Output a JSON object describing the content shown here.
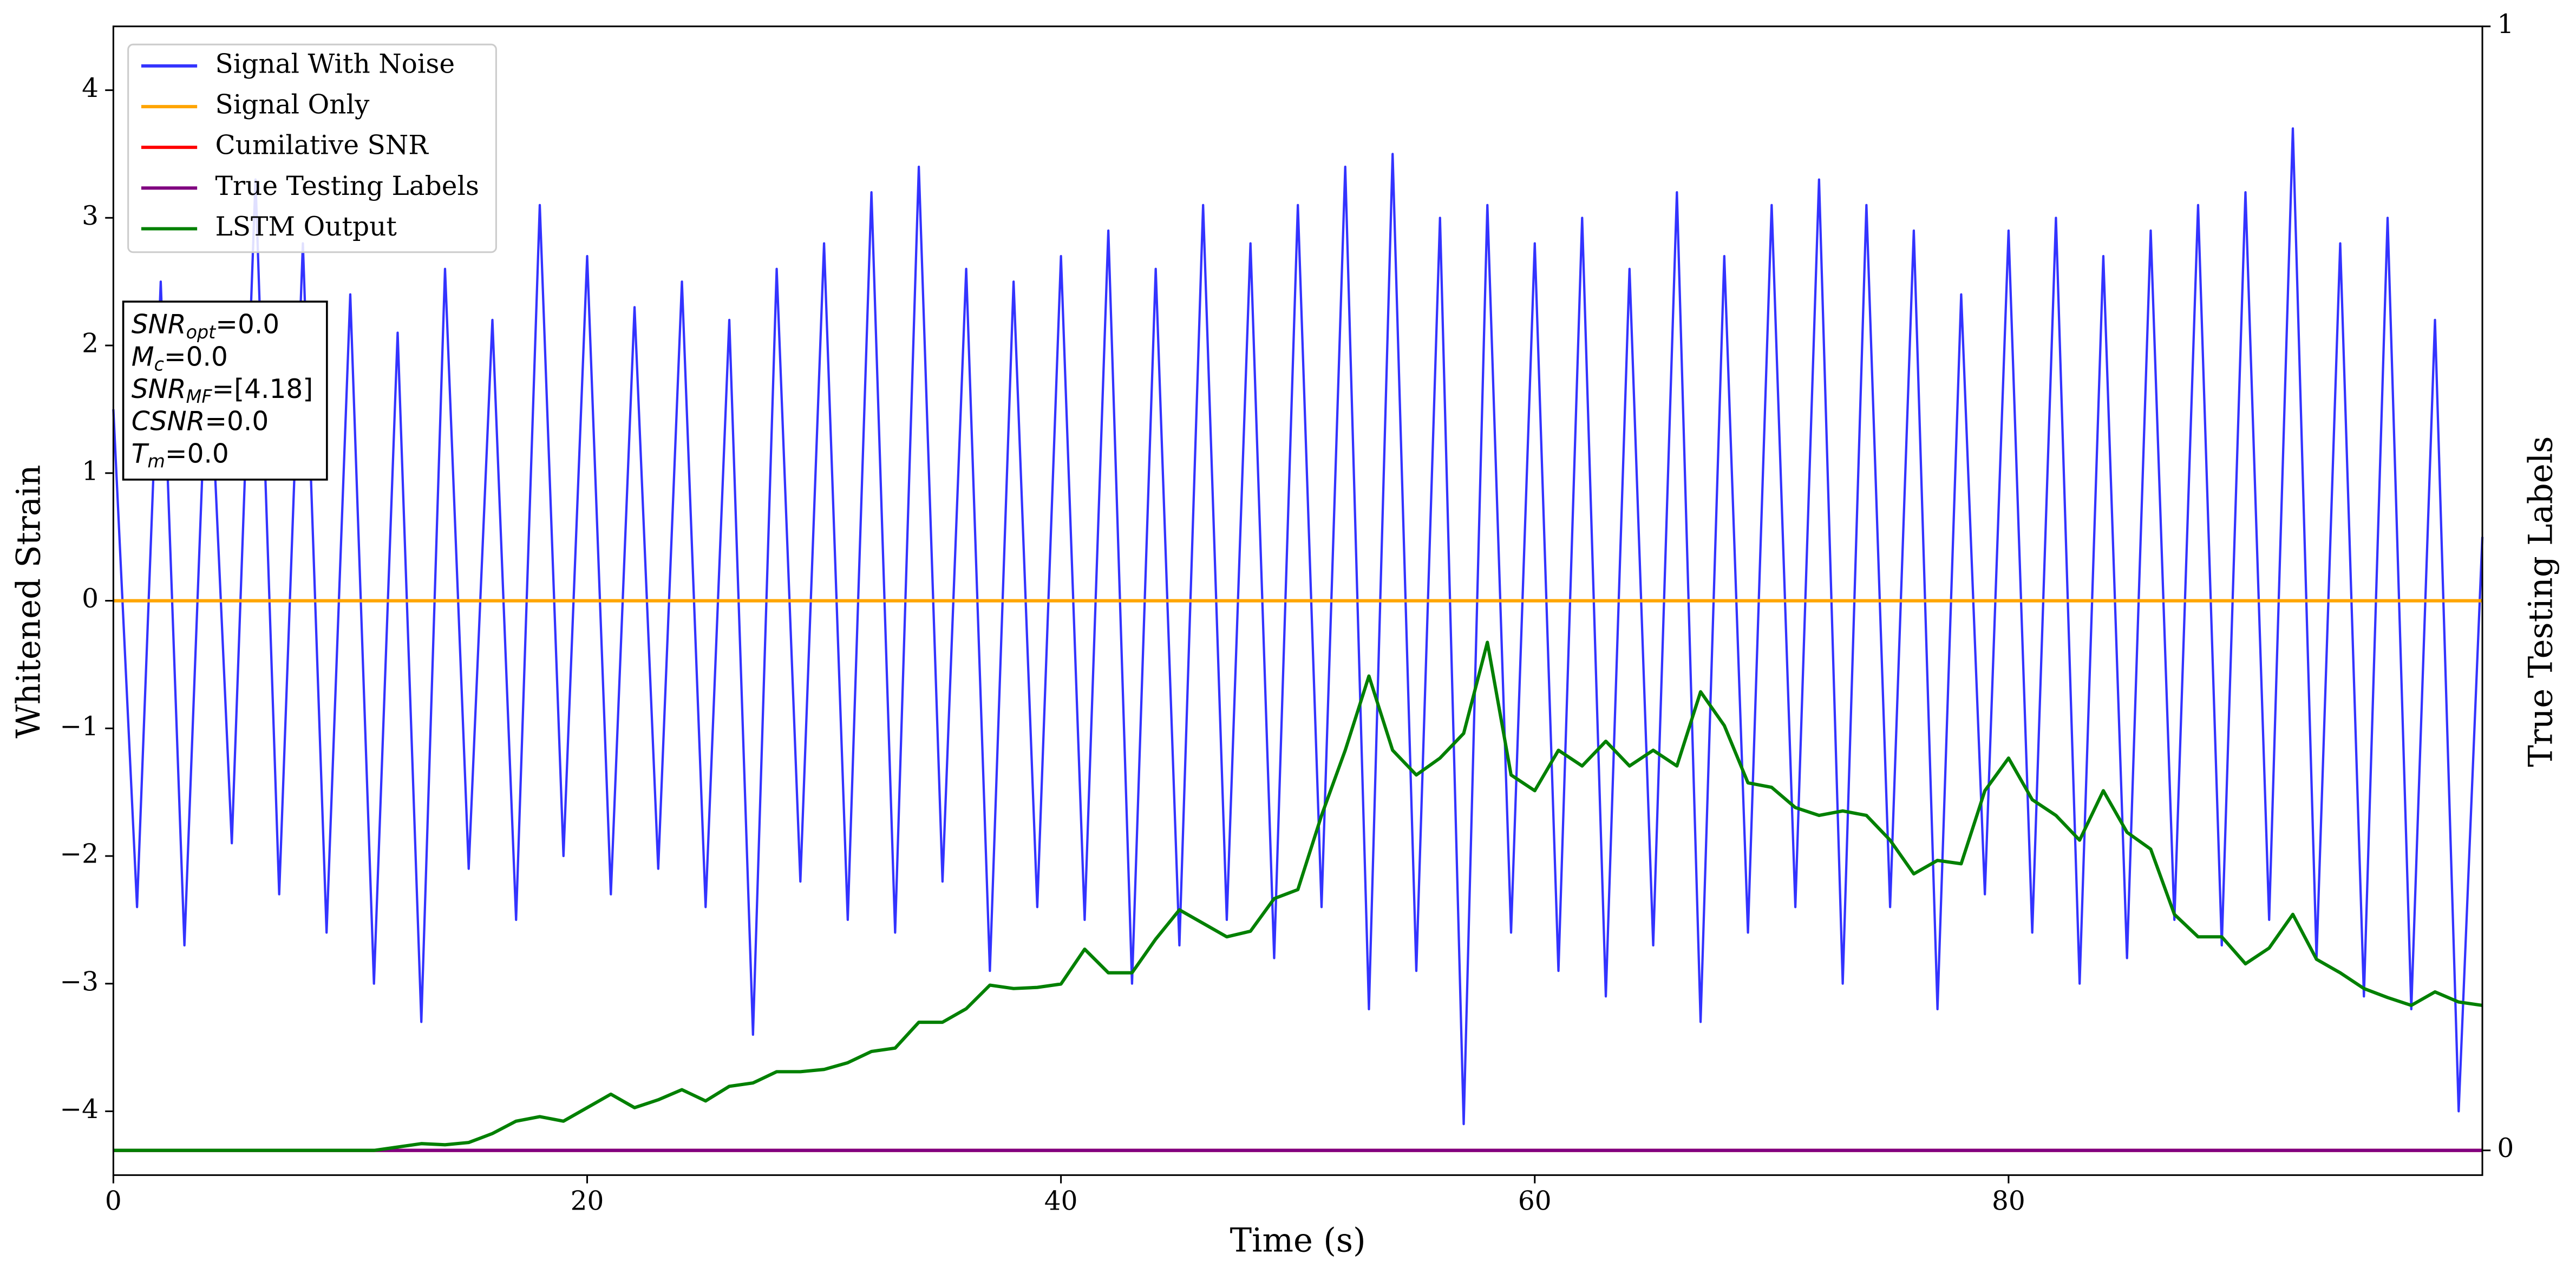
{
  "chart_data": {
    "type": "line",
    "xlabel": "Time (s)",
    "ylabel": "Whitened Strain",
    "y2label": "True Testing Labels",
    "xlim": [
      0,
      100
    ],
    "xticks": [
      0,
      20,
      40,
      60,
      80
    ],
    "ylim": [
      -4.5,
      4.5
    ],
    "yticks": [
      {
        "value": -4,
        "label": "−4"
      },
      {
        "value": -3,
        "label": "−3"
      },
      {
        "value": -2,
        "label": "−2"
      },
      {
        "value": -1,
        "label": "−1"
      },
      0,
      1,
      2,
      3,
      4
    ],
    "y2lim": [
      -0.022,
      1
    ],
    "y2ticks": [
      0,
      1
    ],
    "legend": "upper left",
    "annotations": [
      {
        "symbol": "SNR",
        "subscript": "opt",
        "text": "=0.0"
      },
      {
        "symbol": "M",
        "subscript": "c",
        "text": "=0.0"
      },
      {
        "symbol": "SNR",
        "subscript": "MF",
        "text": "=[4.18]"
      },
      {
        "symbol": "CSNR",
        "text": "=0.0"
      },
      {
        "symbol": "T",
        "subscript": "m",
        "text": "=0.0"
      }
    ],
    "x": [
      0,
      1,
      2,
      3,
      4,
      5,
      6,
      7,
      8,
      9,
      10,
      11,
      12,
      13,
      14,
      15,
      16,
      17,
      18,
      19,
      20,
      21,
      22,
      23,
      24,
      25,
      26,
      27,
      28,
      29,
      30,
      31,
      32,
      33,
      34,
      35,
      36,
      37,
      38,
      39,
      40,
      41,
      42,
      43,
      44,
      45,
      46,
      47,
      48,
      49,
      50,
      51,
      52,
      53,
      54,
      55,
      56,
      57,
      58,
      59,
      60,
      61,
      62,
      63,
      64,
      65,
      66,
      67,
      68,
      69,
      70,
      71,
      72,
      73,
      74,
      75,
      76,
      77,
      78,
      79,
      80,
      81,
      82,
      83,
      84,
      85,
      86,
      87,
      88,
      89,
      90,
      91,
      92,
      93,
      94,
      95,
      96,
      97,
      98,
      99,
      100
    ],
    "series": [
      {
        "name": "Signal With Noise",
        "color": "#3333ff",
        "values": [
          1.5,
          -2.4,
          2.5,
          -2.7,
          2.2,
          -1.9,
          3.3,
          -2.3,
          2.8,
          -2.6,
          2.4,
          -3.0,
          2.1,
          -3.3,
          2.6,
          -2.1,
          2.2,
          -2.5,
          3.1,
          -2.0,
          2.7,
          -2.3,
          2.3,
          -2.1,
          2.5,
          -2.4,
          2.2,
          -3.4,
          2.6,
          -2.2,
          2.8,
          -2.5,
          3.2,
          -2.6,
          3.4,
          -2.2,
          2.6,
          -2.9,
          2.5,
          -2.4,
          2.7,
          -2.5,
          2.9,
          -3.0,
          2.6,
          -2.7,
          3.1,
          -2.5,
          2.8,
          -2.8,
          3.1,
          -2.4,
          3.4,
          -3.2,
          3.5,
          -2.9,
          3.0,
          -4.1,
          3.1,
          -2.6,
          2.8,
          -2.9,
          3.0,
          -3.1,
          2.6,
          -2.7,
          3.2,
          -3.3,
          2.7,
          -2.6,
          3.1,
          -2.4,
          3.3,
          -3.0,
          3.1,
          -2.4,
          2.9,
          -3.2,
          2.4,
          -2.3,
          2.9,
          -2.6,
          3.0,
          -3.0,
          2.7,
          -2.8,
          2.9,
          -2.5,
          3.1,
          -2.7,
          3.2,
          -2.5,
          3.7,
          -2.8,
          2.8,
          -3.1,
          3.0,
          -3.2,
          2.2,
          -4.0,
          0.5
        ]
      },
      {
        "name": "Signal Only",
        "color": "#ffa500",
        "values": [
          0,
          0,
          0,
          0,
          0,
          0,
          0,
          0,
          0,
          0,
          0,
          0,
          0,
          0,
          0,
          0,
          0,
          0,
          0,
          0,
          0,
          0,
          0,
          0,
          0,
          0,
          0,
          0,
          0,
          0,
          0,
          0,
          0,
          0,
          0,
          0,
          0,
          0,
          0,
          0,
          0,
          0,
          0,
          0,
          0,
          0,
          0,
          0,
          0,
          0,
          0,
          0,
          0,
          0,
          0,
          0,
          0,
          0,
          0,
          0,
          0,
          0,
          0,
          0,
          0,
          0,
          0,
          0,
          0,
          0,
          0,
          0,
          0,
          0,
          0,
          0,
          0,
          0,
          0,
          0,
          0,
          0,
          0,
          0,
          0,
          0,
          0,
          0,
          0,
          0,
          0,
          0,
          0,
          0,
          0,
          0,
          0,
          0,
          0,
          0,
          0
        ]
      },
      {
        "name": "Cumilative SNR",
        "color": "#ff0000",
        "axis": "y2",
        "values": [
          0,
          0,
          0,
          0,
          0,
          0,
          0,
          0,
          0,
          0,
          0,
          0,
          0,
          0,
          0,
          0,
          0,
          0,
          0,
          0,
          0,
          0,
          0,
          0,
          0,
          0,
          0,
          0,
          0,
          0,
          0,
          0,
          0,
          0,
          0,
          0,
          0,
          0,
          0,
          0,
          0,
          0,
          0,
          0,
          0,
          0,
          0,
          0,
          0,
          0,
          0,
          0,
          0,
          0,
          0,
          0,
          0,
          0,
          0,
          0,
          0,
          0,
          0,
          0,
          0,
          0,
          0,
          0,
          0,
          0,
          0,
          0,
          0,
          0,
          0,
          0,
          0,
          0,
          0,
          0,
          0,
          0,
          0,
          0,
          0,
          0,
          0,
          0,
          0,
          0,
          0,
          0,
          0,
          0,
          0,
          0,
          0,
          0,
          0,
          0,
          0
        ]
      },
      {
        "name": "True Testing Labels",
        "color": "#800080",
        "axis": "y2",
        "values": [
          0,
          0,
          0,
          0,
          0,
          0,
          0,
          0,
          0,
          0,
          0,
          0,
          0,
          0,
          0,
          0,
          0,
          0,
          0,
          0,
          0,
          0,
          0,
          0,
          0,
          0,
          0,
          0,
          0,
          0,
          0,
          0,
          0,
          0,
          0,
          0,
          0,
          0,
          0,
          0,
          0,
          0,
          0,
          0,
          0,
          0,
          0,
          0,
          0,
          0,
          0,
          0,
          0,
          0,
          0,
          0,
          0,
          0,
          0,
          0,
          0,
          0,
          0,
          0,
          0,
          0,
          0,
          0,
          0,
          0,
          0,
          0,
          0,
          0,
          0,
          0,
          0,
          0,
          0,
          0,
          0,
          0,
          0,
          0,
          0,
          0,
          0,
          0,
          0,
          0,
          0,
          0,
          0,
          0,
          0,
          0,
          0,
          0,
          0,
          0,
          0
        ]
      },
      {
        "name": "LSTM Output",
        "color": "#008000",
        "axis": "y2",
        "values": [
          0,
          0,
          0,
          0,
          0,
          0,
          0,
          0,
          0,
          0,
          0,
          0,
          0.003,
          0.006,
          0.005,
          0.007,
          0.015,
          0.026,
          0.03,
          0.026,
          0.038,
          0.05,
          0.038,
          0.045,
          0.054,
          0.044,
          0.057,
          0.06,
          0.07,
          0.07,
          0.072,
          0.078,
          0.088,
          0.091,
          0.114,
          0.114,
          0.126,
          0.147,
          0.144,
          0.145,
          0.148,
          0.179,
          0.158,
          0.158,
          0.188,
          0.214,
          0.202,
          0.19,
          0.195,
          0.224,
          0.232,
          0.298,
          0.356,
          0.422,
          0.356,
          0.334,
          0.349,
          0.371,
          0.452,
          0.334,
          0.32,
          0.356,
          0.342,
          0.364,
          0.342,
          0.356,
          0.342,
          0.408,
          0.378,
          0.327,
          0.323,
          0.305,
          0.298,
          0.302,
          0.298,
          0.276,
          0.246,
          0.258,
          0.255,
          0.32,
          0.349,
          0.312,
          0.298,
          0.276,
          0.32,
          0.283,
          0.268,
          0.21,
          0.19,
          0.19,
          0.166,
          0.18,
          0.21,
          0.17,
          0.158,
          0.144,
          0.136,
          0.129,
          0.141,
          0.132,
          0.129
        ]
      }
    ]
  }
}
